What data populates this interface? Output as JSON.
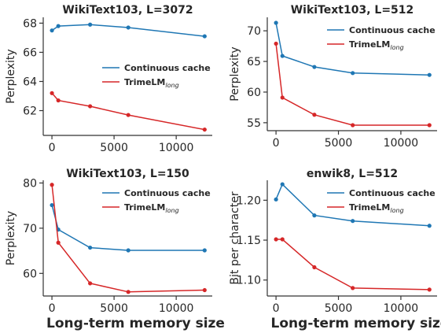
{
  "chart_data": [
    {
      "type": "line",
      "title": "WikiText103, L=3072",
      "ylabel": "Perplexity",
      "xlabel": "",
      "xlim": [
        -700,
        12900
      ],
      "ylim": [
        60.3,
        68.4
      ],
      "xticks": [
        0,
        5000,
        10000
      ],
      "yticks": [
        62,
        64,
        66,
        68
      ],
      "legend": "center-right",
      "series": [
        {
          "name": "Continuous cache",
          "color": "#1f77b4",
          "x": [
            0,
            512,
            3072,
            6144,
            12288
          ],
          "y": [
            67.5,
            67.8,
            67.9,
            67.7,
            67.1
          ]
        },
        {
          "name": "TrimeLM",
          "name_sub": "long",
          "color": "#d62728",
          "x": [
            0,
            512,
            3072,
            6144,
            12288
          ],
          "y": [
            63.2,
            62.7,
            62.3,
            61.7,
            60.7
          ]
        }
      ]
    },
    {
      "type": "line",
      "title": "WikiText103, L=512",
      "ylabel": "Perplexity",
      "xlabel": "",
      "xlim": [
        -700,
        12900
      ],
      "ylim": [
        53.7,
        72.2
      ],
      "xticks": [
        0,
        5000,
        10000
      ],
      "yticks": [
        55,
        60,
        65,
        70
      ],
      "legend": "top-right",
      "series": [
        {
          "name": "Continuous cache",
          "color": "#1f77b4",
          "x": [
            0,
            512,
            3072,
            6144,
            12288
          ],
          "y": [
            71.3,
            65.9,
            64.1,
            63.1,
            62.8
          ]
        },
        {
          "name": "TrimeLM",
          "name_sub": "long",
          "color": "#d62728",
          "x": [
            0,
            512,
            3072,
            6144,
            12288
          ],
          "y": [
            67.9,
            59.1,
            56.3,
            54.6,
            54.6
          ]
        }
      ]
    },
    {
      "type": "line",
      "title": "WikiText103, L=150",
      "ylabel": "Perplexity",
      "xlabel": "Long-term memory size",
      "xlim": [
        -700,
        12900
      ],
      "ylim": [
        55.0,
        80.6
      ],
      "xticks": [
        0,
        5000,
        10000
      ],
      "yticks": [
        60,
        70,
        80
      ],
      "legend": "top-right",
      "series": [
        {
          "name": "Continuous cache",
          "color": "#1f77b4",
          "x": [
            0,
            512,
            3072,
            6144,
            12288
          ],
          "y": [
            75.1,
            69.7,
            65.7,
            65.1,
            65.1
          ]
        },
        {
          "name": "TrimeLM",
          "name_sub": "long",
          "color": "#d62728",
          "x": [
            0,
            512,
            3072,
            6144,
            12288
          ],
          "y": [
            79.6,
            66.8,
            57.8,
            55.9,
            56.3
          ]
        }
      ]
    },
    {
      "type": "line",
      "title": "enwik8, L=512",
      "ylabel": "Bit per character",
      "xlabel": "Long-term memory size",
      "xlim": [
        -700,
        12900
      ],
      "ylim": [
        1.08,
        1.225
      ],
      "xticks": [
        0,
        5000,
        10000
      ],
      "yticks": [
        1.1,
        1.15,
        1.2
      ],
      "ytick_labels": [
        "1.10",
        "1.15",
        "1.20"
      ],
      "legend": "top-right",
      "series": [
        {
          "name": "Continuous cache",
          "color": "#1f77b4",
          "x": [
            0,
            512,
            3072,
            6144,
            12288
          ],
          "y": [
            1.201,
            1.22,
            1.181,
            1.174,
            1.168
          ]
        },
        {
          "name": "TrimeLM",
          "name_sub": "long",
          "color": "#d62728",
          "x": [
            0,
            512,
            3072,
            6144,
            12288
          ],
          "y": [
            1.151,
            1.151,
            1.116,
            1.09,
            1.088
          ]
        }
      ]
    }
  ]
}
